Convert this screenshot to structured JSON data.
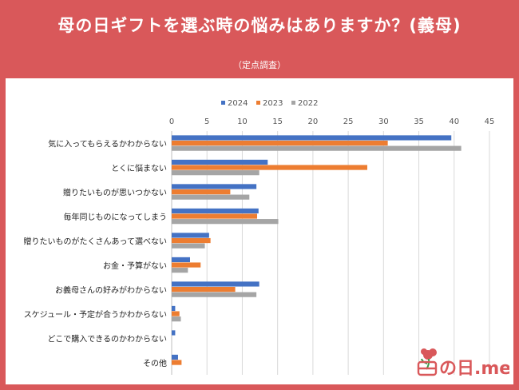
{
  "title": "母の日ギフトを選ぶ時の悩みはありますか？(義母)",
  "subtitle": "（定点調査）",
  "logo": {
    "text": "の日.me",
    "icon": "carnation-icon"
  },
  "colors": {
    "2024": "#4472c4",
    "2023": "#ed7d31",
    "2022": "#a5a5a5",
    "frame": "#d9585a"
  },
  "chart_data": {
    "type": "bar",
    "orientation": "horizontal",
    "categories": [
      "気に入ってもらえるかわからない",
      "とくに悩まない",
      "贈りたいものが思いつかない",
      "毎年同じものになってしまう",
      "贈りたいものがたくさんあって選べない",
      "お金・予算がない",
      "お義母さんの好みがわからない",
      "スケジュール・予定が合うかわからない",
      "どこで購入できるのかわからない",
      "その他"
    ],
    "series": [
      {
        "name": "2024",
        "values": [
          39.6,
          13.6,
          12.0,
          12.3,
          5.3,
          2.6,
          12.4,
          0.5,
          0.5,
          0.9
        ]
      },
      {
        "name": "2023",
        "values": [
          30.6,
          27.7,
          8.3,
          12.1,
          5.5,
          4.1,
          9.0,
          1.1,
          0.0,
          1.4
        ]
      },
      {
        "name": "2022",
        "values": [
          41.0,
          12.4,
          11.0,
          15.1,
          4.7,
          2.3,
          12.0,
          1.3,
          0.0,
          0.0
        ]
      }
    ],
    "xticks": [
      "0",
      "5",
      "10",
      "15",
      "20",
      "25",
      "30",
      "35",
      "40",
      "45"
    ],
    "xlim": [
      0,
      45
    ],
    "grid": true,
    "legend_position": "top"
  }
}
